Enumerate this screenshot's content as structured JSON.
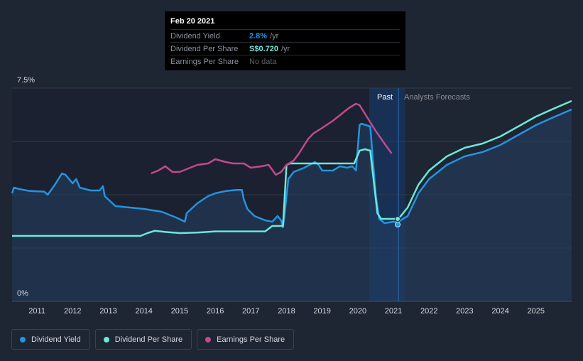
{
  "tooltip": {
    "date": "Feb 20 2021",
    "rows": [
      {
        "label": "Dividend Yield",
        "value": "2.8%",
        "unit": "/yr"
      },
      {
        "label": "Dividend Per Share",
        "value": "S$0.720",
        "unit": "/yr"
      },
      {
        "label": "Earnings Per Share",
        "value": "No data",
        "unit": ""
      }
    ]
  },
  "legend": [
    {
      "label": "Dividend Yield",
      "color": "#2394df"
    },
    {
      "label": "Dividend Per Share",
      "color": "#6ee7d8"
    },
    {
      "label": "Earnings Per Share",
      "color": "#c2498d"
    }
  ],
  "chart_data": {
    "type": "line",
    "title": "",
    "xlabel": "",
    "ylabel": "",
    "ylim": [
      0,
      7.5
    ],
    "xlim": [
      2010.3,
      2026.0
    ],
    "y_tick_labels": [
      {
        "value": 7.5,
        "label": "7.5%"
      },
      {
        "value": 0,
        "label": "0%"
      }
    ],
    "x_ticks": [
      2011,
      2012,
      2013,
      2014,
      2015,
      2016,
      2017,
      2018,
      2019,
      2020,
      2021,
      2022,
      2023,
      2024,
      2025
    ],
    "regions": {
      "past_label": "Past",
      "forecast_label": "Analysts Forecasts",
      "divider_x": 2021.14
    },
    "series": [
      {
        "name": "Dividend Yield",
        "color": "#2394df",
        "area": true,
        "points": [
          [
            2010.3,
            3.8
          ],
          [
            2010.35,
            4.0
          ],
          [
            2010.5,
            3.95
          ],
          [
            2010.8,
            3.88
          ],
          [
            2011.2,
            3.86
          ],
          [
            2011.3,
            3.75
          ],
          [
            2011.5,
            4.1
          ],
          [
            2011.7,
            4.5
          ],
          [
            2011.8,
            4.45
          ],
          [
            2011.9,
            4.3
          ],
          [
            2012.0,
            4.15
          ],
          [
            2012.1,
            4.3
          ],
          [
            2012.2,
            4.0
          ],
          [
            2012.5,
            3.9
          ],
          [
            2012.75,
            3.9
          ],
          [
            2012.85,
            4.05
          ],
          [
            2012.9,
            3.7
          ],
          [
            2013.2,
            3.35
          ],
          [
            2013.6,
            3.3
          ],
          [
            2014.0,
            3.25
          ],
          [
            2014.5,
            3.15
          ],
          [
            2014.9,
            2.95
          ],
          [
            2015.15,
            2.8
          ],
          [
            2015.2,
            3.1
          ],
          [
            2015.5,
            3.45
          ],
          [
            2015.8,
            3.7
          ],
          [
            2016.0,
            3.8
          ],
          [
            2016.3,
            3.88
          ],
          [
            2016.6,
            3.92
          ],
          [
            2016.75,
            3.92
          ],
          [
            2016.8,
            3.6
          ],
          [
            2016.9,
            3.25
          ],
          [
            2017.1,
            3.0
          ],
          [
            2017.4,
            2.85
          ],
          [
            2017.6,
            2.8
          ],
          [
            2017.75,
            3.0
          ],
          [
            2017.85,
            2.85
          ],
          [
            2017.9,
            2.6
          ],
          [
            2017.95,
            3.1
          ],
          [
            2018.05,
            4.3
          ],
          [
            2018.2,
            4.55
          ],
          [
            2018.5,
            4.7
          ],
          [
            2018.8,
            4.9
          ],
          [
            2018.9,
            4.8
          ],
          [
            2019.0,
            4.6
          ],
          [
            2019.3,
            4.6
          ],
          [
            2019.5,
            4.75
          ],
          [
            2019.7,
            4.7
          ],
          [
            2019.85,
            4.75
          ],
          [
            2019.95,
            4.6
          ],
          [
            2020.05,
            6.2
          ],
          [
            2020.1,
            6.25
          ],
          [
            2020.35,
            6.15
          ],
          [
            2020.5,
            3.8
          ],
          [
            2020.6,
            2.9
          ],
          [
            2020.75,
            2.75
          ],
          [
            2021.0,
            2.8
          ],
          [
            2021.14,
            2.8
          ]
        ]
      },
      {
        "name": "Dividend Per Share",
        "color": "#6ee7d8",
        "area": false,
        "points": [
          [
            2010.3,
            2.3
          ],
          [
            2013.9,
            2.3
          ],
          [
            2014.1,
            2.4
          ],
          [
            2014.3,
            2.48
          ],
          [
            2014.6,
            2.44
          ],
          [
            2015.0,
            2.4
          ],
          [
            2015.5,
            2.42
          ],
          [
            2016.0,
            2.46
          ],
          [
            2017.2,
            2.46
          ],
          [
            2017.4,
            2.46
          ],
          [
            2017.6,
            2.65
          ],
          [
            2017.75,
            2.65
          ],
          [
            2017.9,
            2.65
          ],
          [
            2018.0,
            4.8
          ],
          [
            2018.1,
            4.85
          ],
          [
            2019.9,
            4.85
          ],
          [
            2020.05,
            5.3
          ],
          [
            2020.2,
            5.35
          ],
          [
            2020.35,
            5.3
          ],
          [
            2020.55,
            3.1
          ],
          [
            2020.65,
            2.9
          ],
          [
            2021.14,
            2.9
          ],
          [
            2021.4,
            3.3
          ],
          [
            2021.7,
            4.1
          ],
          [
            2022.0,
            4.6
          ],
          [
            2022.5,
            5.1
          ],
          [
            2023.0,
            5.4
          ],
          [
            2023.5,
            5.55
          ],
          [
            2024.0,
            5.8
          ],
          [
            2024.5,
            6.15
          ],
          [
            2025.0,
            6.5
          ],
          [
            2025.5,
            6.78
          ],
          [
            2026.0,
            7.05
          ]
        ]
      },
      {
        "name": "Earnings Per Share",
        "color": "#c2498d",
        "area": false,
        "points": [
          [
            2014.2,
            4.5
          ],
          [
            2014.4,
            4.6
          ],
          [
            2014.6,
            4.75
          ],
          [
            2014.8,
            4.55
          ],
          [
            2015.0,
            4.55
          ],
          [
            2015.2,
            4.65
          ],
          [
            2015.5,
            4.8
          ],
          [
            2015.8,
            4.85
          ],
          [
            2016.0,
            5.0
          ],
          [
            2016.3,
            4.9
          ],
          [
            2016.5,
            4.85
          ],
          [
            2016.8,
            4.85
          ],
          [
            2017.0,
            4.7
          ],
          [
            2017.3,
            4.75
          ],
          [
            2017.5,
            4.8
          ],
          [
            2017.7,
            4.45
          ],
          [
            2017.85,
            4.55
          ],
          [
            2018.0,
            4.8
          ],
          [
            2018.2,
            4.95
          ],
          [
            2018.35,
            5.2
          ],
          [
            2018.6,
            5.7
          ],
          [
            2018.75,
            5.9
          ],
          [
            2019.0,
            6.1
          ],
          [
            2019.3,
            6.35
          ],
          [
            2019.5,
            6.55
          ],
          [
            2019.75,
            6.8
          ],
          [
            2019.95,
            6.95
          ],
          [
            2020.05,
            6.9
          ],
          [
            2020.2,
            6.6
          ],
          [
            2020.5,
            6.0
          ],
          [
            2020.75,
            5.55
          ],
          [
            2020.95,
            5.2
          ]
        ]
      }
    ]
  }
}
